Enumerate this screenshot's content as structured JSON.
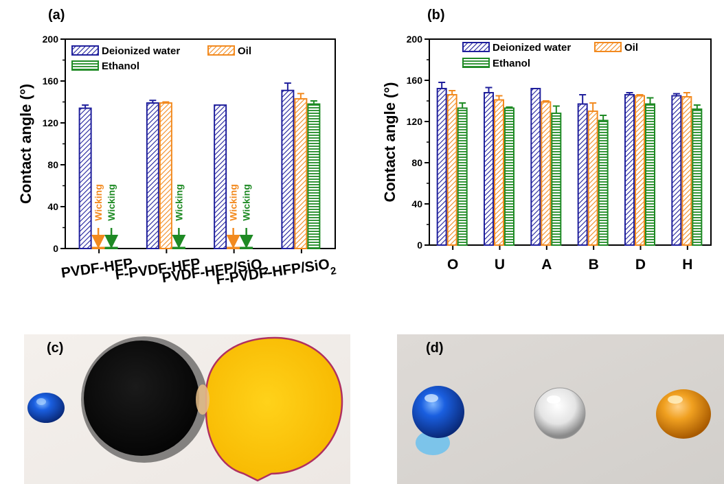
{
  "colors": {
    "water": "#1f1f9c",
    "oil": "#f28a1f",
    "ethanol": "#1e8a24",
    "wicking_oil": "#f28a1f",
    "wicking_ethanol": "#1e8a24"
  },
  "panels": {
    "a": "(a)",
    "b": "(b)",
    "c": "(c)",
    "d": "(d)"
  },
  "sub_two": "2",
  "wicking_label": "Wicking",
  "chart_data": [
    {
      "type": "bar",
      "panel": "(a)",
      "ylabel": "Contact angle (°)",
      "ylim": [
        0,
        200
      ],
      "yticks": [
        "0",
        "40",
        "80",
        "120",
        "160",
        "200"
      ],
      "categories": [
        "PVDF-HFP",
        "F-PVDF-HFP",
        "PVDF-HFP/SiO",
        "F-PVDF-HFP/SiO"
      ],
      "category_subscripts": [
        "",
        "",
        "2",
        "2"
      ],
      "legend": "top-left",
      "series": [
        {
          "name": "Deionized water",
          "values": [
            134,
            139,
            137,
            151
          ],
          "errors": [
            3,
            2.5,
            0,
            7
          ]
        },
        {
          "name": "Oil",
          "values": [
            0,
            139,
            0,
            143
          ],
          "errors": [
            0,
            1,
            0,
            5
          ]
        },
        {
          "name": "Ethanol",
          "values": [
            0,
            0,
            0,
            138
          ],
          "errors": [
            0,
            0,
            0,
            3
          ]
        }
      ],
      "annotations": [
        {
          "category": "PVDF-HFP",
          "series": "Oil",
          "text": "Wicking"
        },
        {
          "category": "PVDF-HFP",
          "series": "Ethanol",
          "text": "Wicking"
        },
        {
          "category": "F-PVDF-HFP",
          "series": "Ethanol",
          "text": "Wicking"
        },
        {
          "category": "PVDF-HFP/SiO2",
          "series": "Oil",
          "text": "Wicking"
        },
        {
          "category": "PVDF-HFP/SiO2",
          "series": "Ethanol",
          "text": "Wicking"
        }
      ]
    },
    {
      "type": "bar",
      "panel": "(b)",
      "ylabel": "Contact angle (°)",
      "ylim": [
        0,
        200
      ],
      "yticks": [
        "0",
        "40",
        "80",
        "120",
        "160",
        "200"
      ],
      "categories": [
        "O",
        "U",
        "A",
        "B",
        "D",
        "H"
      ],
      "legend": "top-left",
      "series": [
        {
          "name": "Deionized water",
          "values": [
            152,
            148,
            152,
            137,
            146,
            145
          ],
          "errors": [
            6,
            5,
            0,
            9,
            2,
            2
          ]
        },
        {
          "name": "Oil",
          "values": [
            146,
            141,
            139,
            130,
            145,
            144
          ],
          "errors": [
            4,
            4,
            1,
            8,
            1,
            4
          ]
        },
        {
          "name": "Ethanol",
          "values": [
            133,
            133,
            128,
            121,
            137,
            132
          ],
          "errors": [
            5,
            1,
            7,
            5,
            6,
            4
          ]
        }
      ]
    }
  ]
}
